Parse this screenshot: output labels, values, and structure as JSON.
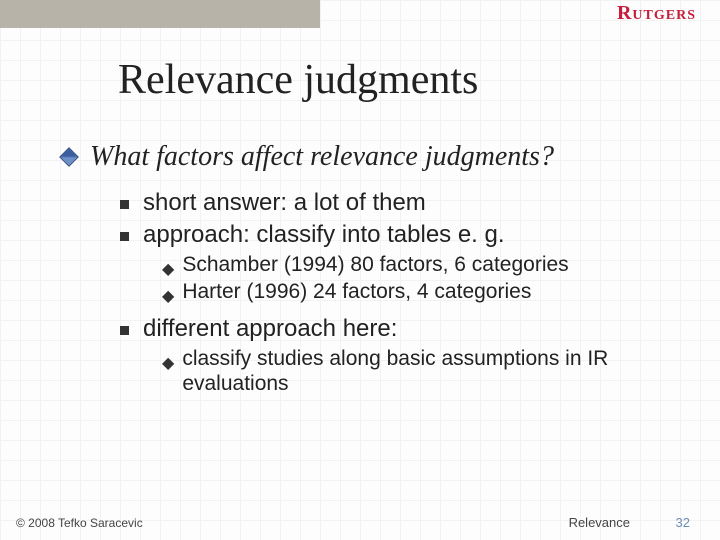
{
  "brand": "Rutgers",
  "title": "Relevance judgments",
  "level1": "What factors affect relevance judgments?",
  "bullets": {
    "b1": "short answer: a lot of them",
    "b2": "approach: classify into tables e. g.",
    "b2a": "Schamber (1994) 80 factors, 6 categories",
    "b2b": "Harter (1996) 24 factors,   4 categories",
    "b3": "different approach here:",
    "b3a": "classify studies along basic assumptions in IR evaluations"
  },
  "footer": {
    "copyright": "© 2008 Tefko Saracevic",
    "topic": "Relevance",
    "page": "32"
  }
}
